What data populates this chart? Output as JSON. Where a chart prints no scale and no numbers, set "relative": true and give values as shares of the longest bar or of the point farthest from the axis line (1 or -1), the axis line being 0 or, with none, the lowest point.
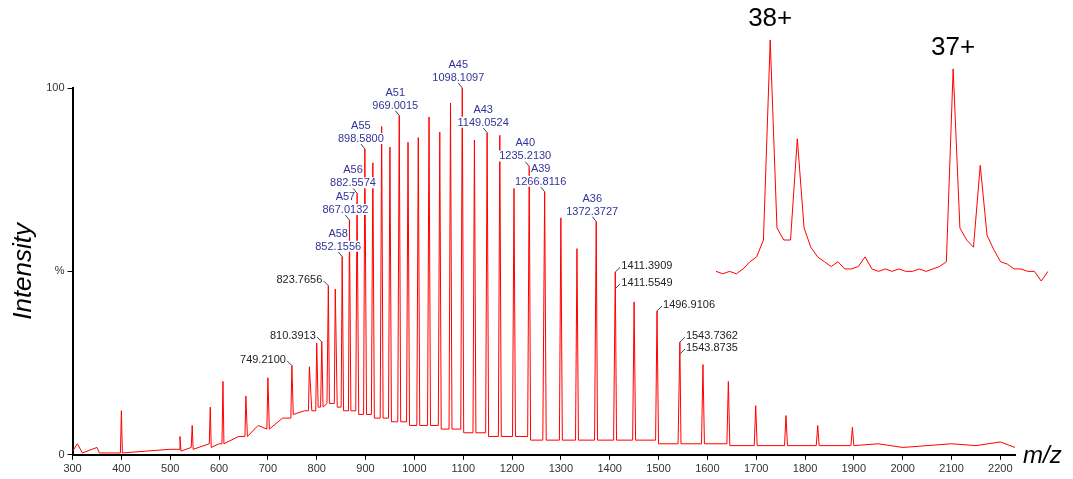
{
  "chart_data": [
    {
      "type": "line",
      "xlabel": "m/z",
      "ylabel": "Intensity",
      "xlim": [
        300,
        2230
      ],
      "xticks": [
        300,
        400,
        500,
        600,
        700,
        800,
        900,
        1000,
        1100,
        1200,
        1300,
        1400,
        1500,
        1600,
        1700,
        1800,
        1900,
        2000,
        2100,
        2200
      ],
      "ylim": [
        0,
        100
      ],
      "yticks": [
        0,
        {
          "value": 50,
          "label": "%"
        },
        100
      ],
      "series": [
        {
          "color": "#ff0000",
          "x": [
            300,
            310,
            320,
            350,
            355,
            398,
            400,
            402,
            450,
            500,
            518,
            520,
            522,
            543,
            545,
            547,
            580,
            582,
            584,
            600,
            606,
            608,
            610,
            640,
            653,
            655,
            658,
            680,
            698,
            700,
            703,
            730,
            747,
            749.2,
            752,
            775,
            783,
            785,
            790,
            798,
            800,
            803,
            808,
            810.4,
            813,
            821,
            823.8,
            826,
            836,
            838,
            842,
            850,
            852.2,
            855,
            865,
            867,
            870,
            880,
            882.6,
            886,
            896,
            898.6,
            902,
            912,
            915,
            918,
            930,
            933,
            936,
            947,
            950,
            953,
            966,
            969,
            972,
            984,
            987,
            990,
            1005,
            1008,
            1011,
            1027,
            1030,
            1033,
            1049,
            1052,
            1055,
            1071,
            1074,
            1077,
            1095,
            1098.1,
            1101,
            1120,
            1123,
            1126,
            1146,
            1149,
            1152,
            1172,
            1175,
            1178,
            1201,
            1204,
            1207,
            1232,
            1235.2,
            1238,
            1263,
            1266.8,
            1270,
            1297,
            1300,
            1303,
            1330,
            1333,
            1336,
            1369,
            1372.4,
            1375,
            1408,
            1411.4,
            1414,
            1447,
            1450,
            1453,
            1494,
            1496.9,
            1500,
            1540,
            1543.7,
            1546,
            1588,
            1591,
            1594,
            1640,
            1643,
            1646,
            1696,
            1699,
            1702,
            1758,
            1761,
            1764,
            1823,
            1826,
            1829,
            1894,
            1897,
            1900,
            1950,
            2000,
            2100,
            2150,
            2200,
            2230
          ],
          "values": [
            1,
            3,
            0.5,
            2,
            0.5,
            0.5,
            12,
            0.5,
            1,
            1.5,
            1.5,
            5,
            1,
            2,
            8,
            1.5,
            3,
            13,
            2,
            3,
            3,
            20,
            3,
            5,
            5,
            16,
            5,
            8,
            7,
            21,
            7,
            10,
            10,
            24.3,
            11,
            12,
            12,
            24,
            12,
            12,
            30.5,
            13,
            13,
            30.8,
            13,
            14,
            46.1,
            14,
            14,
            45.2,
            13,
            13,
            54,
            12,
            12,
            64,
            12,
            12,
            71.3,
            11,
            11,
            83.4,
            11,
            11,
            79.6,
            10,
            10,
            89.5,
            10,
            10,
            83.9,
            9,
            9,
            92.5,
            9,
            9,
            85.2,
            8,
            8,
            86.5,
            8,
            8,
            92.1,
            8,
            8,
            88,
            7,
            7,
            95.9,
            7,
            7,
            100,
            6,
            6,
            85.8,
            6,
            6,
            87.8,
            5,
            5,
            87.1,
            5,
            5,
            72.6,
            5,
            5,
            78.6,
            4,
            4,
            71.7,
            4,
            4,
            64.6,
            4,
            4,
            56.2,
            4,
            4,
            63.6,
            4,
            4,
            49.8,
            4,
            4,
            41.7,
            4,
            4,
            39.2,
            3,
            3,
            30.7,
            3,
            3,
            24.6,
            3,
            3,
            20,
            2.5,
            2.5,
            13.4,
            2.5,
            2.5,
            10.7,
            2.5,
            2.5,
            8,
            2.5,
            2.5,
            7.5,
            2.5,
            3,
            2,
            3,
            2.5,
            3.5,
            2
          ]
        }
      ],
      "annotations": [
        {
          "text": "749.2100",
          "x": 749.21,
          "y": 24.3
        },
        {
          "text": "810.3913",
          "x": 810.3913,
          "y": 30.8
        },
        {
          "text": "823.7656",
          "x": 823.7656,
          "y": 46.1
        },
        {
          "text": "A58\n852.1556",
          "x": 852.1556,
          "y": 54
        },
        {
          "text": "A57\n867.0132",
          "x": 867.0132,
          "y": 64
        },
        {
          "text": "A56\n882.5574",
          "x": 882.5574,
          "y": 71.3
        },
        {
          "text": "A55\n898.5800",
          "x": 898.58,
          "y": 83.4
        },
        {
          "text": "A51\n969.0015",
          "x": 969.0015,
          "y": 92.5
        },
        {
          "text": "A45\n1098.1097",
          "x": 1098.1097,
          "y": 100
        },
        {
          "text": "A43\n1149.0524",
          "x": 1149.0524,
          "y": 87.8
        },
        {
          "text": "A40\n1235.2130",
          "x": 1235.213,
          "y": 78.6
        },
        {
          "text": "A39\n1266.8116",
          "x": 1266.8116,
          "y": 71.7
        },
        {
          "text": "A36\n1372.3727",
          "x": 1372.3727,
          "y": 63.6
        },
        {
          "text": "1411.3909",
          "x": 1411.3909,
          "y": 49.8
        },
        {
          "text": "1411.5549",
          "x": 1411.5549,
          "y": 45.3
        },
        {
          "text": "1496.9106",
          "x": 1496.9106,
          "y": 39.2
        },
        {
          "text": "1543.7362",
          "x": 1543.7362,
          "y": 30.7
        },
        {
          "text": "1543.8735",
          "x": 1543.8735,
          "y": 27.5
        }
      ]
    },
    {
      "type": "line",
      "relative": true,
      "categories": [
        null,
        null,
        null,
        null,
        null,
        null,
        null,
        null,
        null,
        null,
        null,
        null,
        null,
        null,
        null,
        null,
        null,
        null,
        null,
        null,
        null,
        null,
        null,
        null,
        null,
        null,
        null,
        null,
        null,
        null,
        null,
        null,
        null,
        null,
        null,
        null,
        null,
        null,
        null,
        null,
        null,
        null,
        null,
        null,
        null,
        null,
        null,
        null,
        null,
        null
      ],
      "series": [
        {
          "color": "#ff0000",
          "values": [
            0.04,
            0.03,
            0.04,
            0.03,
            0.05,
            0.08,
            0.1,
            0.17,
            1,
            0.22,
            0.17,
            0.17,
            0.59,
            0.22,
            0.14,
            0.1,
            0.08,
            0.06,
            0.08,
            0.05,
            0.05,
            0.06,
            0.1,
            0.05,
            0.04,
            0.05,
            0.04,
            0.05,
            0.04,
            0.04,
            0.05,
            0.04,
            0.05,
            0.06,
            0.08,
            0.88,
            0.22,
            0.17,
            0.14,
            0.48,
            0.19,
            0.13,
            0.08,
            0.07,
            0.05,
            0.05,
            0.04,
            0.04,
            0,
            0.04
          ]
        }
      ],
      "annotations": [
        {
          "text": "38+",
          "y": 1
        },
        {
          "text": "37+",
          "y": 0.88
        }
      ]
    }
  ]
}
